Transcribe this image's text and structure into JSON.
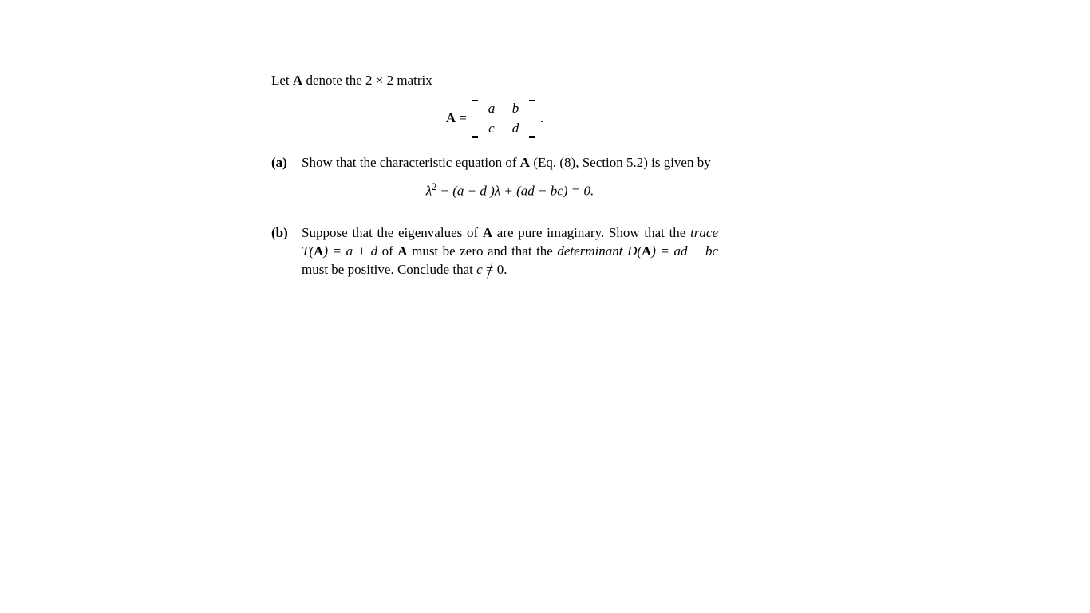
{
  "intro": {
    "pre": "Let ",
    "A": "A",
    "mid": " denote the 2 × 2 matrix"
  },
  "matrix": {
    "lhs_A": "A",
    "equals": " = ",
    "a": "a",
    "b": "b",
    "c": "c",
    "d": "d",
    "period": "."
  },
  "partA": {
    "label": "(a)",
    "line1_pre": "Show that the characteristic equation of ",
    "line1_A": "A",
    "line1_post": " (Eq. (8), Section 5.2) is given by",
    "eq": "λ",
    "eq_sup": "2",
    "eq_rest": " − (a + d )λ + (ad − bc) = 0."
  },
  "partB": {
    "label": "(b)",
    "t1": "Suppose that the eigenvalues of ",
    "A1": "A",
    "t2": " are pure imaginary. Show that the ",
    "trace_word": "trace",
    "t3": " ",
    "trace_expr": "T(",
    "A2": "A",
    "trace_expr2": ") = a + d",
    "t4": " of ",
    "A3": "A",
    "t5": " must be zero and that the ",
    "det_word": "determinant",
    "t6": " ",
    "det_expr": "D(",
    "A4": "A",
    "det_expr2": ") = ad − bc",
    "t7": " must be positive. Conclude that ",
    "c_var": "c",
    "neq": " ",
    "eqsym": "=",
    "zero": " 0."
  }
}
